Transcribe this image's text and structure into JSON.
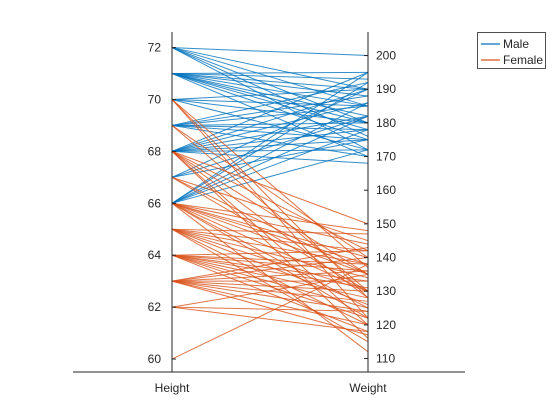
{
  "chart_data": {
    "type": "parallel-coordinates",
    "x_categories": [
      "Height",
      "Weight"
    ],
    "left_axis": {
      "label": "Height",
      "ylim": [
        59.5,
        72.6
      ],
      "ticks": [
        60,
        62,
        64,
        66,
        68,
        70,
        72
      ]
    },
    "right_axis": {
      "label": "Weight",
      "ylim": [
        106,
        207
      ],
      "ticks": [
        110,
        120,
        130,
        140,
        150,
        160,
        170,
        180,
        190,
        200
      ]
    },
    "legend": {
      "location": "top-right",
      "entries": [
        "Male",
        "Female"
      ]
    },
    "grid": false,
    "series": [
      {
        "name": "Male",
        "color": "#0072BD",
        "pairs": [
          [
            72,
            200
          ],
          [
            72,
            190
          ],
          [
            72,
            185
          ],
          [
            72,
            180
          ],
          [
            72,
            176
          ],
          [
            72,
            172
          ],
          [
            71,
            195
          ],
          [
            71,
            193
          ],
          [
            71,
            190
          ],
          [
            71,
            188
          ],
          [
            71,
            185
          ],
          [
            71,
            182
          ],
          [
            71,
            180
          ],
          [
            71,
            178
          ],
          [
            71,
            175
          ],
          [
            71,
            170
          ],
          [
            70,
            190
          ],
          [
            70,
            185
          ],
          [
            70,
            180
          ],
          [
            70,
            172
          ],
          [
            69,
            192
          ],
          [
            69,
            188
          ],
          [
            69,
            185
          ],
          [
            69,
            180
          ],
          [
            69,
            178
          ],
          [
            69,
            175
          ],
          [
            69,
            170
          ],
          [
            68,
            195
          ],
          [
            68,
            190
          ],
          [
            68,
            186
          ],
          [
            68,
            182
          ],
          [
            68,
            178
          ],
          [
            68,
            175
          ],
          [
            68,
            172
          ],
          [
            68,
            168
          ],
          [
            67,
            190
          ],
          [
            67,
            182
          ],
          [
            67,
            175
          ],
          [
            66,
            195
          ],
          [
            66,
            192
          ],
          [
            66,
            186
          ],
          [
            66,
            182
          ],
          [
            66,
            178
          ],
          [
            66,
            172
          ]
        ]
      },
      {
        "name": "Female",
        "color": "#D95319",
        "pairs": [
          [
            70,
            137
          ],
          [
            70,
            128
          ],
          [
            70,
            122
          ],
          [
            69,
            140
          ],
          [
            69,
            130
          ],
          [
            68,
            150
          ],
          [
            68,
            142
          ],
          [
            68,
            135
          ],
          [
            68,
            128
          ],
          [
            68,
            120
          ],
          [
            68,
            116
          ],
          [
            67,
            145
          ],
          [
            67,
            135
          ],
          [
            67,
            130
          ],
          [
            66,
            148
          ],
          [
            66,
            144
          ],
          [
            66,
            140
          ],
          [
            66,
            138
          ],
          [
            66,
            135
          ],
          [
            66,
            130
          ],
          [
            66,
            125
          ],
          [
            66,
            122
          ],
          [
            66,
            112
          ],
          [
            65,
            147
          ],
          [
            65,
            142
          ],
          [
            65,
            138
          ],
          [
            65,
            134
          ],
          [
            65,
            130
          ],
          [
            65,
            126
          ],
          [
            65,
            120
          ],
          [
            65,
            115
          ],
          [
            64,
            142
          ],
          [
            64,
            138
          ],
          [
            64,
            136
          ],
          [
            64,
            133
          ],
          [
            64,
            131
          ],
          [
            64,
            128
          ],
          [
            64,
            125
          ],
          [
            64,
            122
          ],
          [
            64,
            118
          ],
          [
            63,
            143
          ],
          [
            63,
            140
          ],
          [
            63,
            136
          ],
          [
            63,
            133
          ],
          [
            63,
            130
          ],
          [
            63,
            127
          ],
          [
            63,
            124
          ],
          [
            63,
            120
          ],
          [
            63,
            117
          ],
          [
            62,
            135
          ],
          [
            62,
            124
          ],
          [
            62,
            118
          ],
          [
            60,
            138
          ]
        ]
      }
    ]
  }
}
